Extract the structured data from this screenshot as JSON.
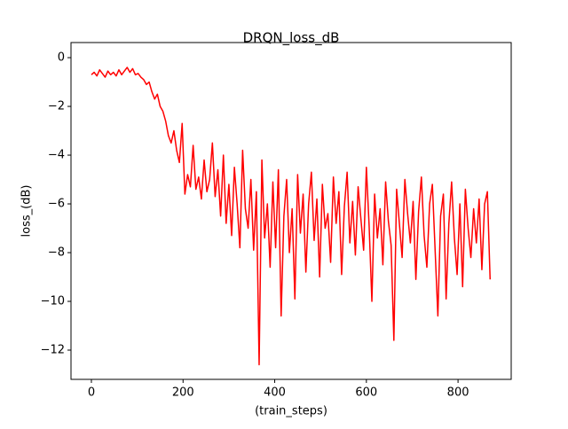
{
  "chart_data": {
    "type": "line",
    "title": "DRQN_loss_dB",
    "xlabel": "(train_steps)",
    "ylabel": "loss_(dB)",
    "color": "#ff0000",
    "x": [
      0,
      6,
      12,
      18,
      24,
      30,
      36,
      42,
      48,
      54,
      60,
      66,
      72,
      78,
      84,
      90,
      96,
      102,
      108,
      114,
      120,
      126,
      132,
      138,
      144,
      150,
      156,
      162,
      168,
      174,
      180,
      186,
      192,
      198,
      204,
      210,
      216,
      222,
      228,
      234,
      240,
      246,
      252,
      258,
      264,
      270,
      276,
      282,
      288,
      294,
      300,
      306,
      312,
      318,
      324,
      330,
      336,
      342,
      348,
      354,
      360,
      366,
      372,
      378,
      384,
      390,
      396,
      402,
      408,
      414,
      420,
      426,
      432,
      438,
      444,
      450,
      456,
      462,
      468,
      474,
      480,
      486,
      492,
      498,
      504,
      510,
      516,
      522,
      528,
      534,
      540,
      546,
      552,
      558,
      564,
      570,
      576,
      582,
      588,
      594,
      600,
      606,
      612,
      618,
      624,
      630,
      636,
      642,
      648,
      654,
      660,
      666,
      672,
      678,
      684,
      690,
      696,
      702,
      708,
      714,
      720,
      726,
      732,
      738,
      744,
      750,
      756,
      762,
      768,
      774,
      780,
      786,
      792,
      798,
      804,
      810,
      816,
      822,
      828,
      834,
      840,
      846,
      852,
      858,
      864,
      870
    ],
    "values": [
      -0.7,
      -0.6,
      -0.75,
      -0.5,
      -0.65,
      -0.8,
      -0.55,
      -0.7,
      -0.6,
      -0.75,
      -0.5,
      -0.7,
      -0.55,
      -0.4,
      -0.6,
      -0.45,
      -0.7,
      -0.65,
      -0.8,
      -0.9,
      -1.1,
      -1.0,
      -1.4,
      -1.7,
      -1.5,
      -2.0,
      -2.2,
      -2.6,
      -3.2,
      -3.5,
      -3.0,
      -3.8,
      -4.3,
      -2.7,
      -5.6,
      -4.8,
      -5.3,
      -3.6,
      -5.4,
      -4.9,
      -5.8,
      -4.2,
      -5.5,
      -5.0,
      -3.5,
      -5.7,
      -4.6,
      -6.5,
      -4.0,
      -6.8,
      -5.2,
      -7.3,
      -4.5,
      -6.0,
      -7.8,
      -3.8,
      -6.2,
      -7.0,
      -5.0,
      -7.9,
      -5.5,
      -12.6,
      -4.2,
      -7.4,
      -6.0,
      -8.6,
      -5.1,
      -7.8,
      -4.6,
      -10.6,
      -6.5,
      -5.0,
      -8.0,
      -6.2,
      -9.9,
      -4.8,
      -7.2,
      -5.6,
      -8.8,
      -6.0,
      -4.7,
      -7.5,
      -5.8,
      -9.0,
      -5.2,
      -7.0,
      -6.4,
      -8.4,
      -4.9,
      -6.8,
      -5.5,
      -8.9,
      -6.1,
      -4.7,
      -7.6,
      -5.9,
      -8.1,
      -5.3,
      -6.6,
      -7.9,
      -4.5,
      -6.9,
      -10.0,
      -5.6,
      -7.4,
      -6.2,
      -8.5,
      -5.1,
      -6.7,
      -7.7,
      -11.6,
      -5.4,
      -6.8,
      -8.2,
      -5.0,
      -6.4,
      -7.6,
      -5.9,
      -9.1,
      -6.3,
      -4.9,
      -7.3,
      -8.6,
      -6.0,
      -5.2,
      -7.9,
      -10.6,
      -6.5,
      -5.6,
      -9.9,
      -6.8,
      -5.1,
      -7.4,
      -8.9,
      -6.0,
      -9.4,
      -5.4,
      -7.0,
      -8.2,
      -6.2,
      -7.6,
      -5.8,
      -8.7,
      -6.0,
      -5.5,
      -9.1
    ],
    "xlim": [
      -44.5,
      916
    ],
    "ylim": [
      -13.2,
      0.62
    ],
    "xticks": [
      0,
      200,
      400,
      600,
      800
    ],
    "yticks": [
      {
        "value": -12,
        "label": "−12"
      },
      {
        "value": -10,
        "label": "−10"
      },
      {
        "value": -8,
        "label": "−8"
      },
      {
        "value": -6,
        "label": "−6"
      },
      {
        "value": -4,
        "label": "−4"
      },
      {
        "value": -2,
        "label": "−2"
      },
      0
    ],
    "grid": false
  }
}
